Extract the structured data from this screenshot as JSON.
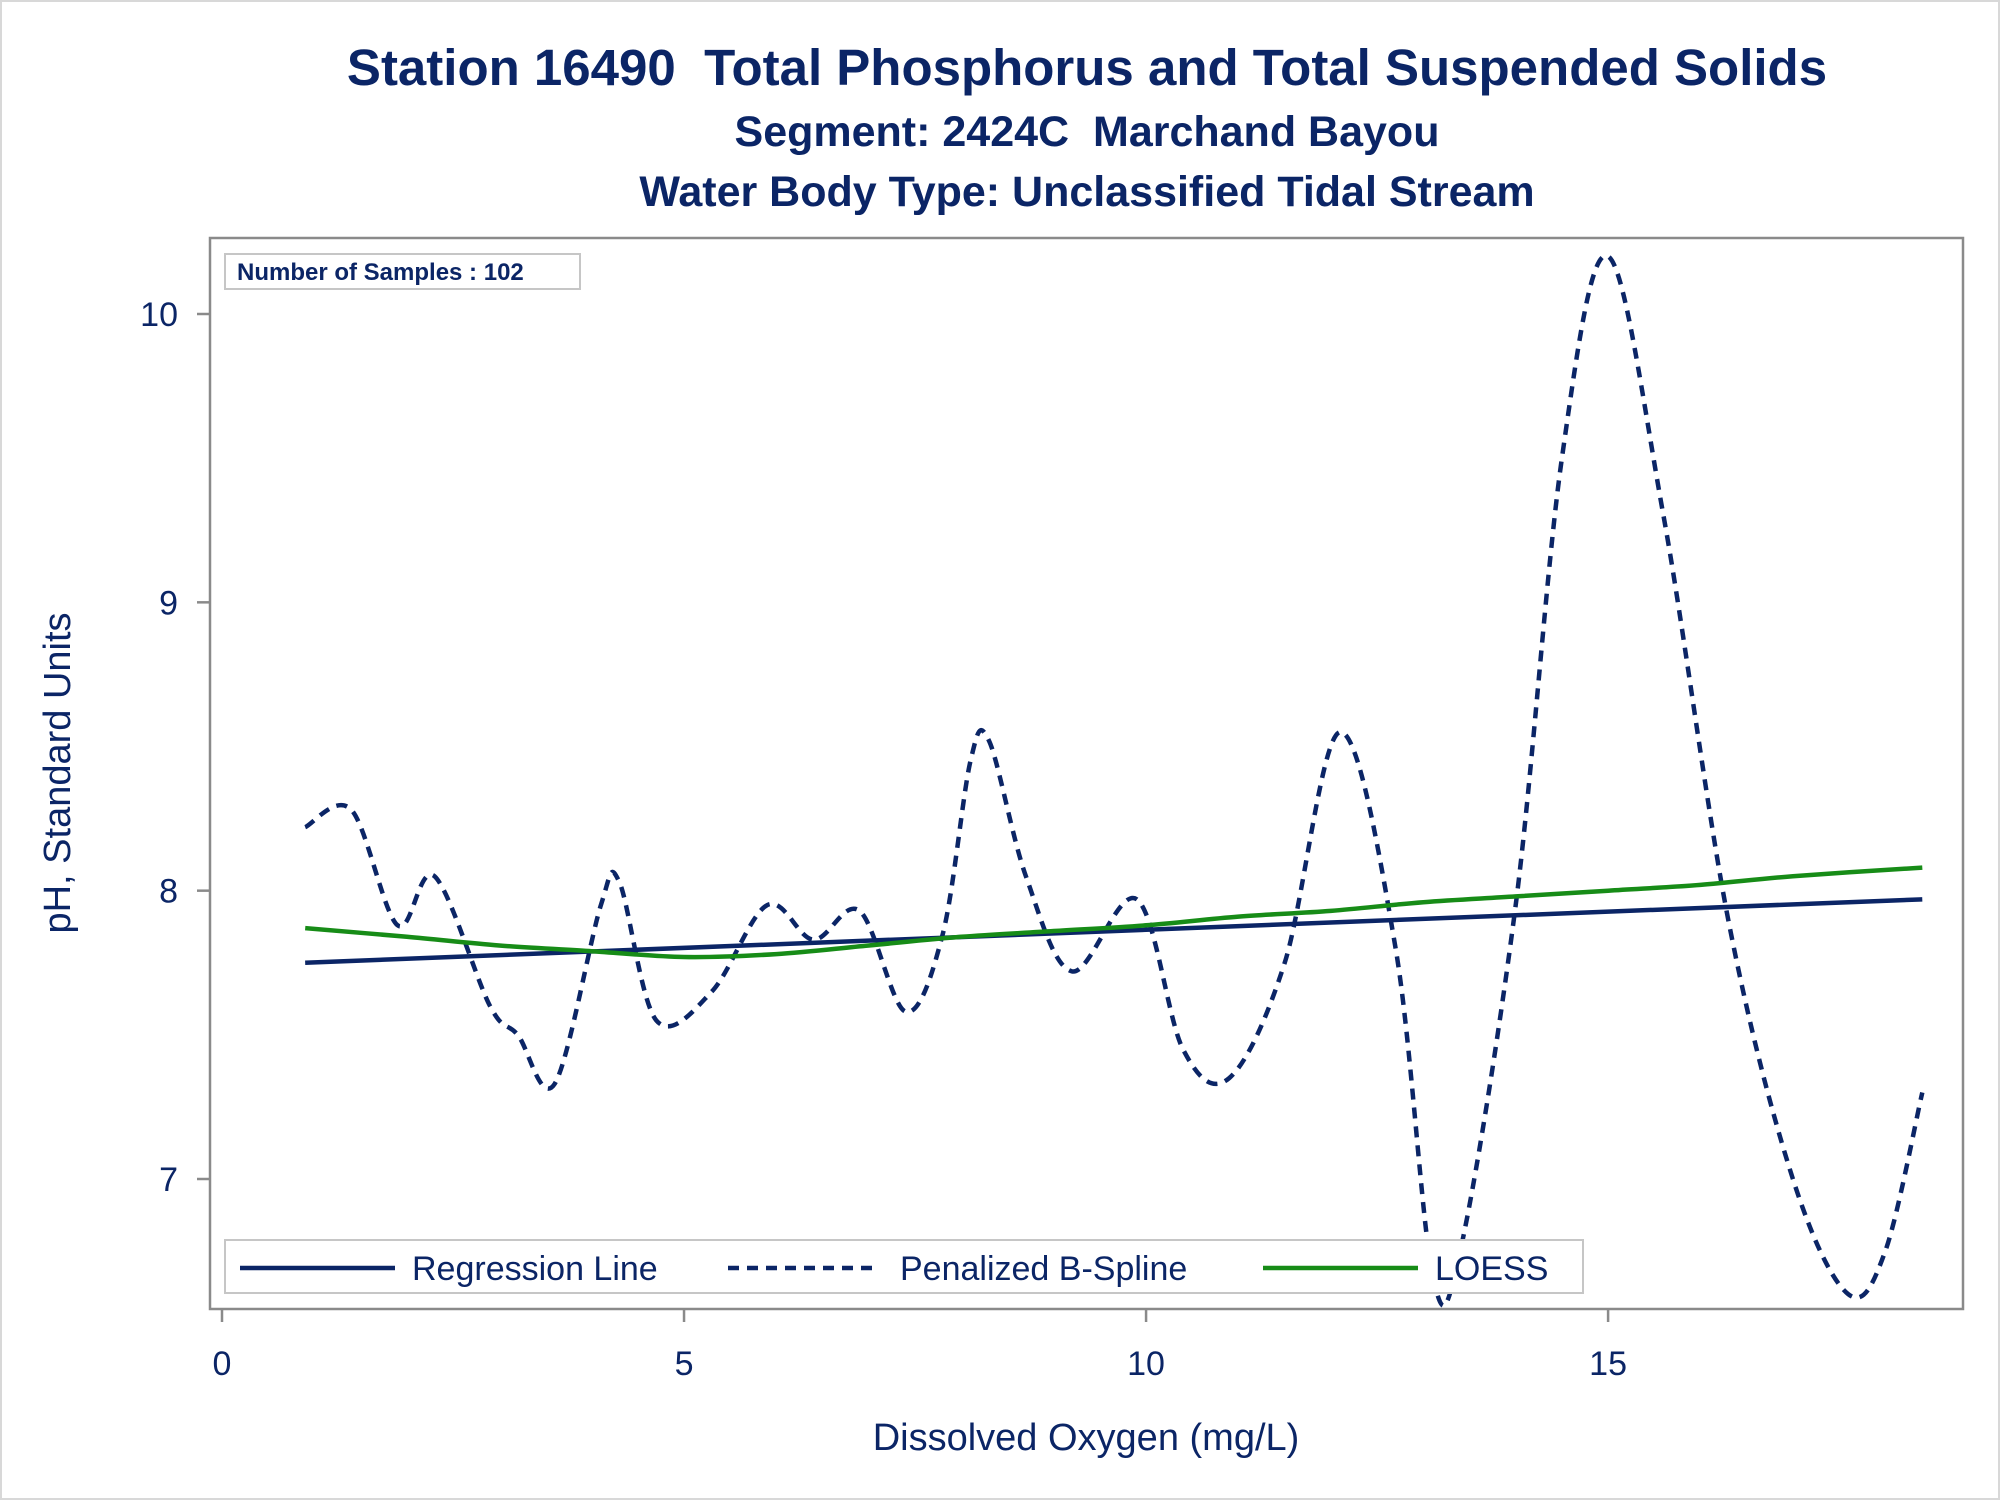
{
  "titles": {
    "line1": "Station 16490  Total Phosphorus and Total Suspended Solids",
    "line2": "Segment: 2424C  Marchand Bayou",
    "line3": "Water Body Type: Unclassified Tidal Stream"
  },
  "inset": {
    "label": "Number of Samples : 102"
  },
  "colors": {
    "navy": "#0b2566",
    "green": "#178c17",
    "frame": "#8a8a8a",
    "text": "#0b2566"
  },
  "chart_data": {
    "type": "line",
    "xlabel": "Dissolved Oxygen (mg/L)",
    "ylabel": "pH, Standard Units",
    "xlim": [
      0,
      18.5
    ],
    "ylim": [
      6.55,
      10.27
    ],
    "xticks": [
      0,
      5,
      10,
      15
    ],
    "yticks": [
      7,
      8,
      9,
      10
    ],
    "grid": false,
    "legend_position": "bottom-left inside",
    "series": [
      {
        "name": "Regression Line",
        "style": "solid",
        "color": "#0b2566",
        "x": [
          0.9,
          18.4
        ],
        "y": [
          7.75,
          7.97
        ]
      },
      {
        "name": "Penalized B-Spline",
        "style": "dashed",
        "color": "#0b2566",
        "x": [
          0.9,
          1.4,
          1.9,
          2.3,
          2.9,
          3.2,
          3.6,
          4.1,
          4.3,
          4.7,
          5.3,
          5.9,
          6.4,
          6.9,
          7.4,
          7.8,
          8.1,
          8.3,
          8.7,
          9.2,
          9.9,
          10.4,
          10.9,
          11.5,
          12.1,
          12.7,
          13.1,
          13.4,
          14.0,
          14.5,
          15.0,
          15.6,
          16.3,
          17.0,
          17.6,
          18.0,
          18.4
        ],
        "y": [
          8.22,
          8.28,
          7.88,
          8.05,
          7.6,
          7.5,
          7.33,
          7.95,
          8.03,
          7.55,
          7.65,
          7.95,
          7.83,
          7.93,
          7.58,
          7.85,
          8.45,
          8.52,
          8.05,
          7.72,
          7.97,
          7.45,
          7.35,
          7.75,
          8.55,
          7.8,
          6.67,
          6.75,
          7.95,
          9.5,
          10.2,
          9.3,
          7.9,
          7.0,
          6.6,
          6.75,
          7.3
        ]
      },
      {
        "name": "LOESS",
        "style": "solid",
        "color": "#178c17",
        "x": [
          0.9,
          2.0,
          3.0,
          4.0,
          5.0,
          6.0,
          7.0,
          8.0,
          9.0,
          10.0,
          11.0,
          12.0,
          13.0,
          14.0,
          15.0,
          16.0,
          17.0,
          18.4
        ],
        "y": [
          7.87,
          7.84,
          7.81,
          7.79,
          7.77,
          7.78,
          7.81,
          7.84,
          7.86,
          7.88,
          7.91,
          7.93,
          7.96,
          7.98,
          8.0,
          8.02,
          8.05,
          8.08
        ]
      }
    ]
  }
}
